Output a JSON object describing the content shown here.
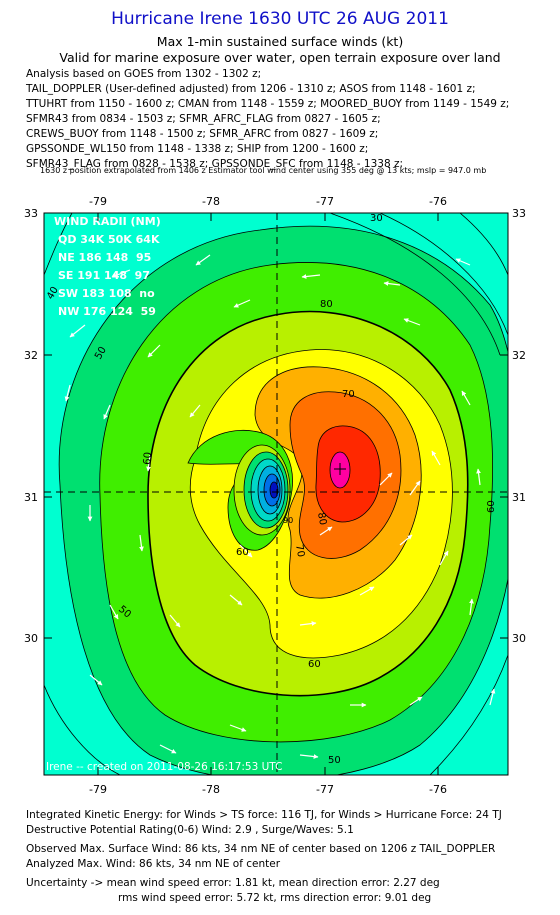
{
  "header": {
    "title": "Hurricane Irene 1630 UTC 26 AUG 2011",
    "subtitle1": "Max 1-min sustained surface winds (kt)",
    "subtitle2": "Valid for marine exposure over water, open terrain exposure over land",
    "analysis_lines": [
      "Analysis based on GOES from 1302 - 1302 z;",
      "TAIL_DOPPLER (User-defined adjusted) from 1206 - 1310 z; ASOS from 1148 - 1601 z;",
      "TTUHRT from 1150 - 1600 z; CMAN from 1148 - 1559 z; MOORED_BUOY from 1149 - 1549 z;",
      "SFMR43 from 0834 - 1503 z; SFMR_AFRC_FLAG from 0827 - 1605 z;",
      "CREWS_BUOY from 1148 - 1500 z; SFMR_AFRC from 0827 - 1609 z;",
      "GPSSONDE_WL150 from 1148 - 1338 z; SHIP from 1200 - 1600 z;",
      "SFMR43_FLAG from 0828 - 1538 z; GPSSONDE_SFC from 1148 - 1338 z;"
    ],
    "position_note": "1630 z position extrapolated from 1406 z Estimator tool wind center using 355 deg @ 13 kts; mslp = 947.0 mb"
  },
  "map": {
    "lon_ticks": [
      "-79",
      "-78",
      "-77",
      "-76"
    ],
    "lat_ticks": [
      "33",
      "32",
      "31",
      "30"
    ],
    "wind_radii": {
      "title": "WIND RADII (NM)",
      "header": "QD 34K 50K 64K",
      "rows": [
        "NE 186 148  95",
        "SE 191 148  97",
        "SW 183 108  no",
        "NW 176 124  59"
      ]
    },
    "contour_labels": [
      "30",
      "40",
      "50",
      "50",
      "50",
      "60",
      "60",
      "60",
      "60",
      "70",
      "70",
      "80",
      "80",
      "90"
    ],
    "credit": "Irene -- created on 2011-08-26 16:17:53 UTC"
  },
  "footer": {
    "lines": [
      "Integrated Kinetic Energy:  for Winds > TS force: 116 TJ,  for Winds > Hurricane Force: 24 TJ",
      "Destructive Potential Rating(0-6)   Wind: 2.9 , Surge/Waves: 5.1",
      "Observed Max. Surface Wind: 86 kts, 34 nm NE of center based on 1206 z TAIL_DOPPLER",
      "Analyzed Max. Wind: 86 kts, 34 nm NE of center",
      "Uncertainty -> mean wind speed error: 1.81 kt,   mean direction error: 2.27 deg",
      "rms wind speed error: 5.72 kt,   rms direction error: 9.01 deg"
    ]
  },
  "colors": {
    "title": "#1010c8",
    "band_cyan": "#00ffd0",
    "band_green1": "#00e070",
    "band_green2": "#40ee00",
    "band_ygreen": "#b8f000",
    "band_yellow": "#ffff00",
    "band_orange1": "#ffb000",
    "band_orange2": "#ff7000",
    "band_red": "#ff2800",
    "band_magenta": "#ff00a0"
  }
}
